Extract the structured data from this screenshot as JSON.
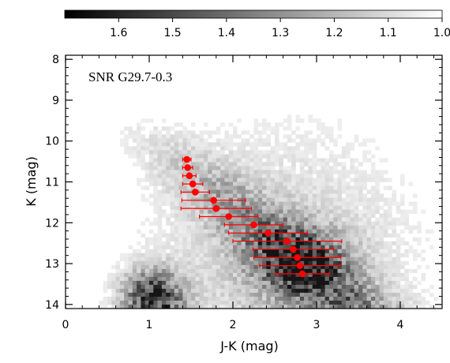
{
  "chart_data": {
    "type": "scatter",
    "title": "",
    "panel_label": "SNR G29.7-0.3",
    "xlabel": "J-K (mag)",
    "ylabel": "K (mag)",
    "xlim": [
      0,
      4.5
    ],
    "ylim": [
      14.1,
      7.9
    ],
    "y_inverted": true,
    "x_ticks": [
      0,
      1,
      2,
      3,
      4
    ],
    "x_tick_labels": [
      "0",
      "1",
      "2",
      "3",
      "4"
    ],
    "y_ticks": [
      8,
      9,
      10,
      11,
      12,
      13,
      14
    ],
    "y_tick_labels": [
      "8",
      "9",
      "10",
      "11",
      "12",
      "13",
      "14"
    ],
    "background": "grayscale Hess-diagram density of stars in the J-K vs K plane",
    "colorbar": {
      "position": "top",
      "range": [
        1.7,
        1.0
      ],
      "ticks": [
        1.6,
        1.5,
        1.4,
        1.3,
        1.2,
        1.1,
        1.0
      ],
      "tick_labels": [
        "1.6",
        "1.5",
        "1.4",
        "1.3",
        "1.2",
        "1.1",
        "1.0"
      ],
      "colormap": "black-to-white"
    },
    "series": [
      {
        "marker_color": "#ff0000",
        "points": [
          {
            "x": 1.45,
            "y": 10.45,
            "xerr": 0.05
          },
          {
            "x": 1.46,
            "y": 10.65,
            "xerr": 0.06
          },
          {
            "x": 1.48,
            "y": 10.85,
            "xerr": 0.08
          },
          {
            "x": 1.52,
            "y": 11.05,
            "xerr": 0.12
          },
          {
            "x": 1.55,
            "y": 11.25,
            "xerr": 0.17
          },
          {
            "x": 1.77,
            "y": 11.45,
            "xerr": 0.38
          },
          {
            "x": 1.8,
            "y": 11.65,
            "xerr": 0.42
          },
          {
            "x": 1.95,
            "y": 11.85,
            "xerr": 0.35
          },
          {
            "x": 2.25,
            "y": 12.05,
            "xerr": 0.35
          },
          {
            "x": 2.42,
            "y": 12.25,
            "xerr": 0.47
          },
          {
            "x": 2.65,
            "y": 12.45,
            "xerr": 0.65
          },
          {
            "x": 2.72,
            "y": 12.65,
            "xerr": 0.48
          },
          {
            "x": 2.77,
            "y": 12.85,
            "xerr": 0.52
          },
          {
            "x": 2.8,
            "y": 13.05,
            "xerr": 0.48
          },
          {
            "x": 2.83,
            "y": 13.25,
            "xerr": 0.32
          }
        ]
      }
    ]
  }
}
